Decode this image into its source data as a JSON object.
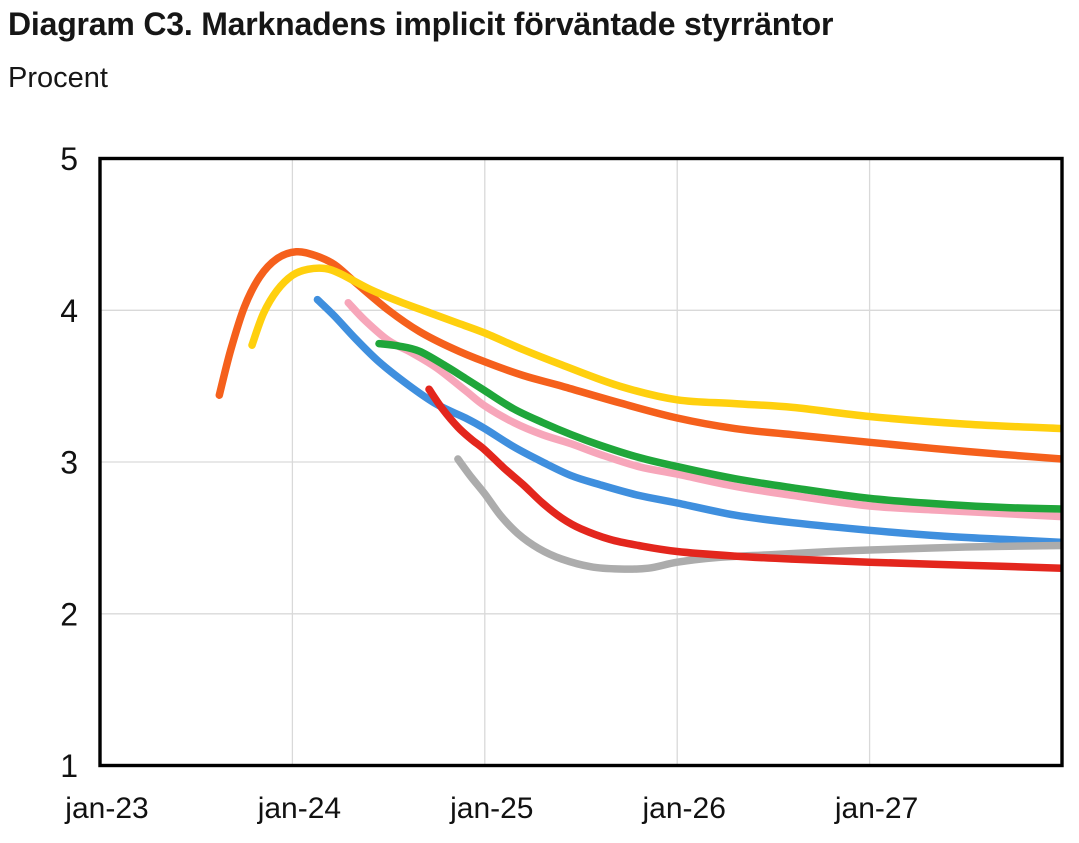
{
  "chart_data": {
    "type": "line",
    "title": "Diagram C3. Marknadens implicit förväntade styrräntor",
    "subtitle": "Procent",
    "legend_position": "none",
    "grid": true,
    "x_axis": {
      "range": [
        2023,
        2028
      ],
      "gridlines": [
        2024,
        2025,
        2026,
        2027
      ],
      "ticks": [
        {
          "t": 2023,
          "label": "jan-23"
        },
        {
          "t": 2024,
          "label": "jan-24"
        },
        {
          "t": 2025,
          "label": "jan-25"
        },
        {
          "t": 2026,
          "label": "jan-26"
        },
        {
          "t": 2027,
          "label": "jan-27"
        }
      ]
    },
    "y_axis": {
      "range": [
        1,
        5
      ],
      "ticks": [
        5,
        4,
        3,
        2,
        1
      ],
      "gridlines": [
        4,
        3,
        2
      ]
    },
    "line_width": 7.5,
    "series": [
      {
        "name": "orange",
        "color": "#F5601C",
        "points": [
          [
            2023.62,
            3.44
          ],
          [
            2023.68,
            3.74
          ],
          [
            2023.75,
            4.02
          ],
          [
            2023.83,
            4.22
          ],
          [
            2023.92,
            4.34
          ],
          [
            2024.02,
            4.385
          ],
          [
            2024.12,
            4.36
          ],
          [
            2024.22,
            4.3
          ],
          [
            2024.33,
            4.18
          ],
          [
            2024.5,
            4.0
          ],
          [
            2024.66,
            3.86
          ],
          [
            2024.83,
            3.75
          ],
          [
            2025.0,
            3.66
          ],
          [
            2025.2,
            3.57
          ],
          [
            2025.4,
            3.5
          ],
          [
            2025.7,
            3.39
          ],
          [
            2026.0,
            3.29
          ],
          [
            2026.3,
            3.22
          ],
          [
            2026.6,
            3.18
          ],
          [
            2027.0,
            3.13
          ],
          [
            2027.5,
            3.07
          ],
          [
            2028.0,
            3.02
          ]
        ]
      },
      {
        "name": "yellow",
        "color": "#FFD00E",
        "points": [
          [
            2023.79,
            3.77
          ],
          [
            2023.85,
            3.98
          ],
          [
            2023.92,
            4.13
          ],
          [
            2024.0,
            4.23
          ],
          [
            2024.08,
            4.27
          ],
          [
            2024.17,
            4.275
          ],
          [
            2024.25,
            4.24
          ],
          [
            2024.4,
            4.14
          ],
          [
            2024.55,
            4.06
          ],
          [
            2024.7,
            3.99
          ],
          [
            2024.85,
            3.92
          ],
          [
            2025.0,
            3.85
          ],
          [
            2025.2,
            3.74
          ],
          [
            2025.4,
            3.64
          ],
          [
            2025.7,
            3.5
          ],
          [
            2026.0,
            3.41
          ],
          [
            2026.3,
            3.385
          ],
          [
            2026.6,
            3.36
          ],
          [
            2027.0,
            3.3
          ],
          [
            2027.5,
            3.25
          ],
          [
            2028.0,
            3.22
          ]
        ]
      },
      {
        "name": "blue",
        "color": "#3F8FDE",
        "points": [
          [
            2024.13,
            4.07
          ],
          [
            2024.22,
            3.96
          ],
          [
            2024.33,
            3.81
          ],
          [
            2024.45,
            3.66
          ],
          [
            2024.6,
            3.51
          ],
          [
            2024.75,
            3.38
          ],
          [
            2024.9,
            3.29
          ],
          [
            2025.0,
            3.22
          ],
          [
            2025.15,
            3.1
          ],
          [
            2025.3,
            3.0
          ],
          [
            2025.45,
            2.91
          ],
          [
            2025.6,
            2.85
          ],
          [
            2025.8,
            2.78
          ],
          [
            2026.0,
            2.73
          ],
          [
            2026.3,
            2.65
          ],
          [
            2026.6,
            2.6
          ],
          [
            2027.0,
            2.55
          ],
          [
            2027.4,
            2.51
          ],
          [
            2027.7,
            2.49
          ],
          [
            2028.0,
            2.47
          ]
        ]
      },
      {
        "name": "pink",
        "color": "#F7A6BA",
        "points": [
          [
            2024.29,
            4.05
          ],
          [
            2024.38,
            3.93
          ],
          [
            2024.5,
            3.8
          ],
          [
            2024.62,
            3.72
          ],
          [
            2024.75,
            3.62
          ],
          [
            2024.9,
            3.47
          ],
          [
            2025.0,
            3.37
          ],
          [
            2025.15,
            3.26
          ],
          [
            2025.3,
            3.18
          ],
          [
            2025.45,
            3.12
          ],
          [
            2025.6,
            3.05
          ],
          [
            2025.8,
            2.97
          ],
          [
            2026.0,
            2.92
          ],
          [
            2026.3,
            2.84
          ],
          [
            2026.6,
            2.78
          ],
          [
            2027.0,
            2.71
          ],
          [
            2027.4,
            2.68
          ],
          [
            2027.7,
            2.66
          ],
          [
            2028.0,
            2.64
          ]
        ]
      },
      {
        "name": "green",
        "color": "#1FA63A",
        "points": [
          [
            2024.45,
            3.78
          ],
          [
            2024.55,
            3.765
          ],
          [
            2024.66,
            3.73
          ],
          [
            2024.8,
            3.63
          ],
          [
            2024.9,
            3.55
          ],
          [
            2025.0,
            3.47
          ],
          [
            2025.15,
            3.35
          ],
          [
            2025.3,
            3.26
          ],
          [
            2025.45,
            3.18
          ],
          [
            2025.6,
            3.11
          ],
          [
            2025.8,
            3.03
          ],
          [
            2026.0,
            2.97
          ],
          [
            2026.3,
            2.89
          ],
          [
            2026.6,
            2.83
          ],
          [
            2027.0,
            2.76
          ],
          [
            2027.4,
            2.72
          ],
          [
            2027.7,
            2.7
          ],
          [
            2028.0,
            2.69
          ]
        ]
      },
      {
        "name": "gray",
        "color": "#ACACAC",
        "points": [
          [
            2024.86,
            3.02
          ],
          [
            2024.93,
            2.9
          ],
          [
            2025.0,
            2.79
          ],
          [
            2025.08,
            2.65
          ],
          [
            2025.17,
            2.53
          ],
          [
            2025.28,
            2.43
          ],
          [
            2025.4,
            2.36
          ],
          [
            2025.55,
            2.31
          ],
          [
            2025.7,
            2.295
          ],
          [
            2025.85,
            2.3
          ],
          [
            2026.0,
            2.34
          ],
          [
            2026.2,
            2.37
          ],
          [
            2026.5,
            2.39
          ],
          [
            2026.8,
            2.41
          ],
          [
            2027.0,
            2.42
          ],
          [
            2027.5,
            2.44
          ],
          [
            2028.0,
            2.45
          ]
        ]
      },
      {
        "name": "red",
        "color": "#E3261D",
        "points": [
          [
            2024.71,
            3.48
          ],
          [
            2024.78,
            3.35
          ],
          [
            2024.86,
            3.23
          ],
          [
            2024.93,
            3.15
          ],
          [
            2025.0,
            3.08
          ],
          [
            2025.1,
            2.96
          ],
          [
            2025.2,
            2.85
          ],
          [
            2025.3,
            2.73
          ],
          [
            2025.4,
            2.63
          ],
          [
            2025.5,
            2.56
          ],
          [
            2025.65,
            2.49
          ],
          [
            2025.8,
            2.45
          ],
          [
            2026.0,
            2.41
          ],
          [
            2026.3,
            2.38
          ],
          [
            2026.6,
            2.36
          ],
          [
            2027.0,
            2.34
          ],
          [
            2027.5,
            2.32
          ],
          [
            2028.0,
            2.3
          ]
        ]
      }
    ]
  }
}
